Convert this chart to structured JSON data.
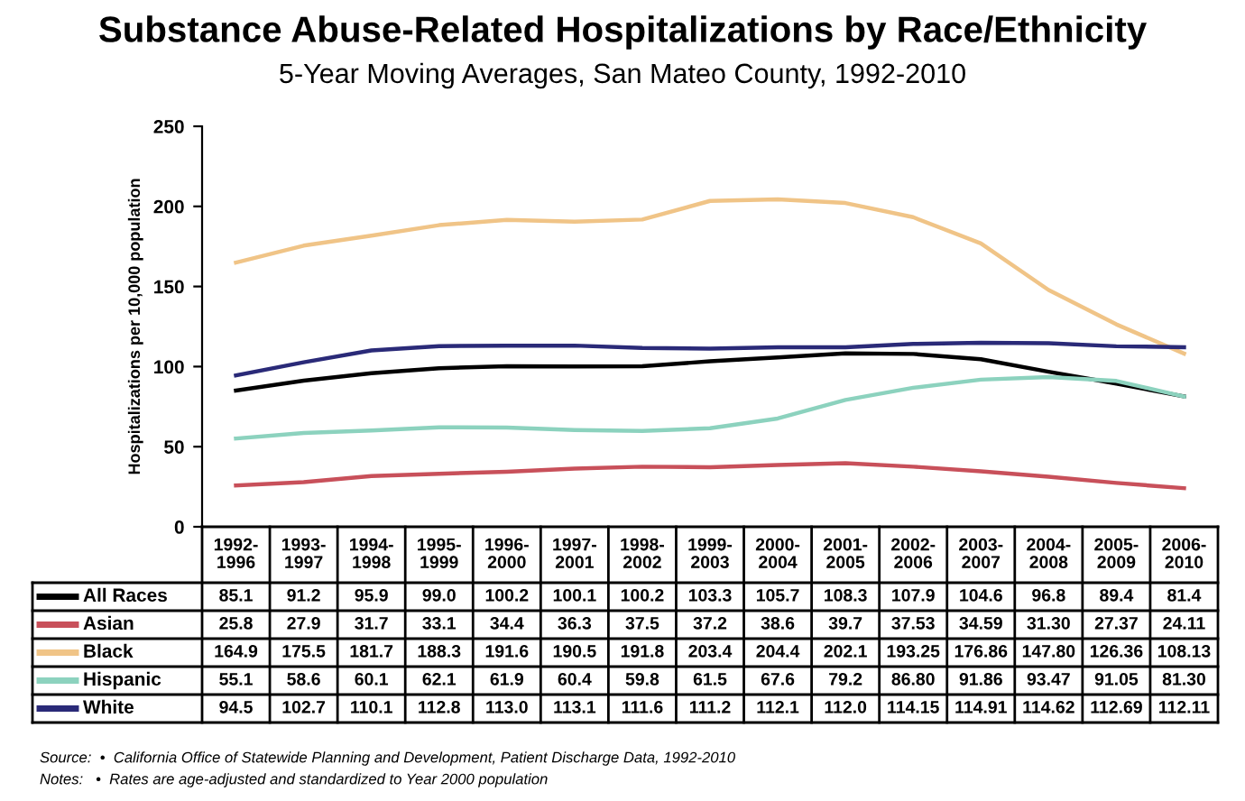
{
  "chart_data": {
    "type": "line",
    "title": "Substance Abuse-Related Hospitalizations by Race/Ethnicity",
    "subtitle": "5-Year Moving Averages, San Mateo County, 1992-2010",
    "ylabel": "Hospitalizations per 10,000 population",
    "categories": [
      "1992-1996",
      "1993-1997",
      "1994-1998",
      "1995-1999",
      "1996-2000",
      "1997-2001",
      "1998-2002",
      "1999-2003",
      "2000-2004",
      "2001-2005",
      "2002-2006",
      "2003-2007",
      "2004-2008",
      "2005-2009",
      "2006-2010"
    ],
    "ylim": [
      0,
      250
    ],
    "yticks": [
      0,
      50,
      100,
      150,
      200,
      250
    ],
    "grid": false,
    "legend": "bottom",
    "marker": "none",
    "line_style": "solid",
    "series": [
      {
        "name": "All Races",
        "color": "#000000",
        "values": [
          85.1,
          91.2,
          95.9,
          99.0,
          100.2,
          100.1,
          100.2,
          103.3,
          105.7,
          108.3,
          107.9,
          104.6,
          96.8,
          89.4,
          81.4
        ],
        "value_labels": [
          "85.1",
          "91.2",
          "95.9",
          "99.0",
          "100.2",
          "100.1",
          "100.2",
          "103.3",
          "105.7",
          "108.3",
          "107.9",
          "104.6",
          "96.8",
          "89.4",
          "81.4"
        ]
      },
      {
        "name": "Asian",
        "color": "#c8505a",
        "values": [
          25.8,
          27.9,
          31.7,
          33.1,
          34.4,
          36.3,
          37.5,
          37.2,
          38.6,
          39.7,
          37.53,
          34.59,
          31.3,
          27.37,
          24.11
        ],
        "value_labels": [
          "25.8",
          "27.9",
          "31.7",
          "33.1",
          "34.4",
          "36.3",
          "37.5",
          "37.2",
          "38.6",
          "39.7",
          "37.53",
          "34.59",
          "31.30",
          "27.37",
          "24.11"
        ]
      },
      {
        "name": "Black",
        "color": "#f0c487",
        "values": [
          164.9,
          175.5,
          181.7,
          188.3,
          191.6,
          190.5,
          191.8,
          203.4,
          204.4,
          202.1,
          193.25,
          176.86,
          147.8,
          126.36,
          108.13
        ],
        "value_labels": [
          "164.9",
          "175.5",
          "181.7",
          "188.3",
          "191.6",
          "190.5",
          "191.8",
          "203.4",
          "204.4",
          "202.1",
          "193.25",
          "176.86",
          "147.80",
          "126.36",
          "108.13"
        ]
      },
      {
        "name": "Hispanic",
        "color": "#8cd2be",
        "values": [
          55.1,
          58.6,
          60.1,
          62.1,
          61.9,
          60.4,
          59.8,
          61.5,
          67.6,
          79.2,
          86.8,
          91.86,
          93.47,
          91.05,
          81.3
        ],
        "value_labels": [
          "55.1",
          "58.6",
          "60.1",
          "62.1",
          "61.9",
          "60.4",
          "59.8",
          "61.5",
          "67.6",
          "79.2",
          "86.80",
          "91.86",
          "93.47",
          "91.05",
          "81.30"
        ]
      },
      {
        "name": "White",
        "color": "#2a2a78",
        "values": [
          94.5,
          102.7,
          110.1,
          112.8,
          113.0,
          113.1,
          111.6,
          111.2,
          112.1,
          112.0,
          114.15,
          114.91,
          114.62,
          112.69,
          112.11
        ],
        "value_labels": [
          "94.5",
          "102.7",
          "110.1",
          "112.8",
          "113.0",
          "113.1",
          "111.6",
          "111.2",
          "112.1",
          "112.0",
          "114.15",
          "114.91",
          "114.62",
          "112.69",
          "112.11"
        ]
      }
    ],
    "annotations": [
      "Source:  •  California Office of Statewide Planning and Development, Patient Discharge Data, 1992-2010",
      "Notes:   •  Rates are age-adjusted and standardized to Year 2000 population"
    ]
  }
}
